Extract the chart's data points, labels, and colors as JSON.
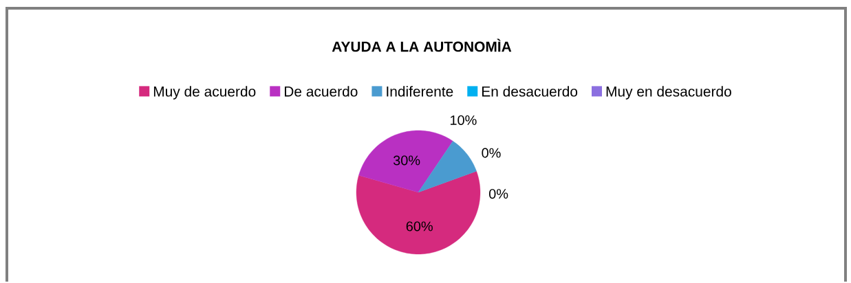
{
  "chart_data": {
    "type": "pie",
    "title": "AYUDA A LA AUTONOMÌA",
    "categories": [
      "Muy de acuerdo",
      "De acuerdo",
      "Indiferente",
      "En desacuerdo",
      "Muy en desacuerdo"
    ],
    "values": [
      60,
      30,
      10,
      0,
      0
    ],
    "colors": [
      "#d52a7e",
      "#b930c2",
      "#4a9bd0",
      "#00b0f0",
      "#8b6fe0"
    ],
    "value_labels": [
      "60%",
      "30%",
      "10%",
      "0%",
      "0%"
    ],
    "legend": "top"
  }
}
